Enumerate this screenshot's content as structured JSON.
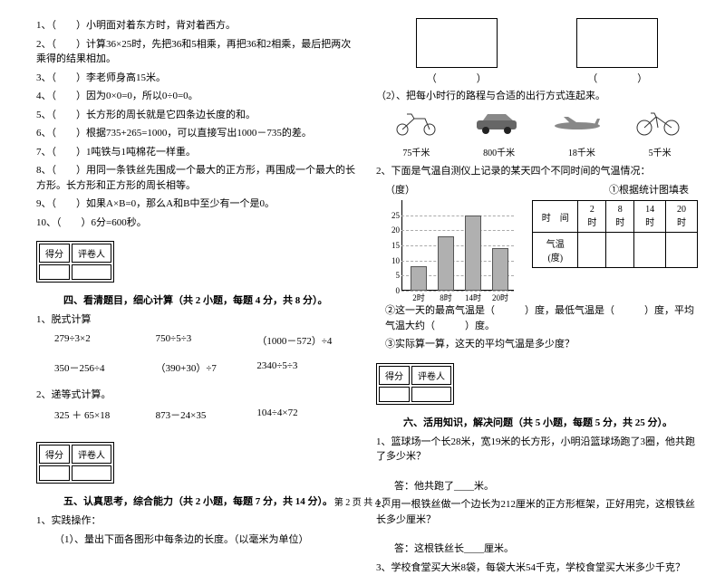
{
  "left": {
    "tf": [
      "1、（　　）小明面对着东方时，背对着西方。",
      "2、（　　）计算36×25时，先把36和5相乘，再把36和2相乘，最后把两次乘得的结果相加。",
      "3、（　　）李老师身高15米。",
      "4、（　　）因为0×0=0，所以0÷0=0。",
      "5、（　　）长方形的周长就是它四条边长度的和。",
      "6、（　　）根据735+265=1000，可以直接写出1000－735的差。",
      "7、（　　）1吨铁与1吨棉花一样重。",
      "8、（　　）用同一条铁丝先围成一个最大的正方形，再围成一个最大的长方形。长方形和正方形的周长相等。",
      "9、（　　）如果A×B=0，那么A和B中至少有一个是0。",
      "10、（　　）6分=600秒。"
    ],
    "score_cols": [
      "得分",
      "评卷人"
    ],
    "sec4_title": "四、看清题目，细心计算（共 2 小题，每题 4 分，共 8 分）。",
    "sec4_sub1": "1、脱式计算",
    "sec4_row1": [
      "279÷3×2",
      "750÷5÷3",
      "（1000－572）÷4"
    ],
    "sec4_row2": [
      "350－256÷4",
      "（390+30）÷7",
      "2340÷5÷3"
    ],
    "sec4_sub2": "2、递等式计算。",
    "sec4_row3": [
      "325 ＋ 65×18",
      "873－24×35",
      "104÷4×72"
    ],
    "sec5_title": "五、认真思考，综合能力（共 2 小题，每题 7 分，共 14 分）。",
    "sec5_sub1": "1、实践操作：",
    "sec5_item1": "（1）、量出下面各图形中每条边的长度。（以毫米为单位）"
  },
  "right": {
    "paren": "（　　　　）",
    "item2": "（2）、把每小时行的路程与合适的出行方式连起来。",
    "speeds": [
      "75千米",
      "800千米",
      "18千米",
      "5千米"
    ],
    "sub2": "2、下面是气温自测仪上记录的某天四个不同时间的气温情况：",
    "ylabel": "（度）",
    "chart_title": "①根据统计图填表",
    "yticks": [
      "25",
      "20",
      "15",
      "10",
      "5",
      "0"
    ],
    "xticks": [
      "2时",
      "8时",
      "14时",
      "20时"
    ],
    "table_head": [
      "时　间",
      "2时",
      "8时",
      "14时",
      "20时"
    ],
    "table_row": [
      "气温(度)",
      "",
      "",
      "",
      ""
    ],
    "q2": "②这一天的最高气温是（　　　）度，最低气温是（　　　）度，平均气温大约（　　　）度。",
    "q3": "③实际算一算，这天的平均气温是多少度？",
    "sec6_title": "六、活用知识，解决问题（共 5 小题，每题 5 分，共 25 分）。",
    "p1": "1、篮球场一个长28米，宽19米的长方形，小明沿篮球场跑了3圈，他共跑了多少米？",
    "a1": "答：他共跑了____米。",
    "p2": "2、用一根铁丝做一个边长为212厘米的正方形框架，正好用完，这根铁丝长多少厘米？",
    "a2": "答：这根铁丝长____厘米。",
    "p3": "3、学校食堂买大米8袋，每袋大米54千克，学校食堂买大米多少千克？"
  },
  "chart": {
    "values": [
      8,
      18,
      25,
      14
    ],
    "max": 30,
    "bar_color": "#b0b0b0"
  },
  "footer": "第 2 页 共 4 页"
}
